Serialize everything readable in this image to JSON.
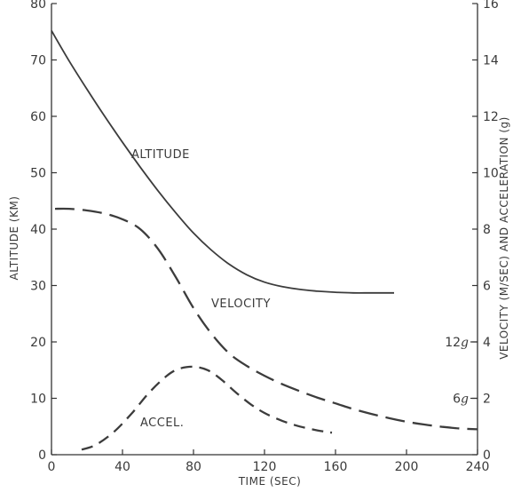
{
  "chart_data": {
    "type": "line",
    "xlabel": "TIME (SEC)",
    "ylabel": "ALTITUDE (KM)",
    "y2label": "VELOCITY (M/SEC) AND ACCELERATION (g)",
    "xlim": [
      0,
      240
    ],
    "ylim": [
      0,
      80
    ],
    "y2lim": [
      0,
      16
    ],
    "x_ticks": [
      0,
      40,
      80,
      120,
      160,
      200,
      240
    ],
    "y_ticks": [
      0,
      10,
      20,
      30,
      40,
      50,
      60,
      70,
      80
    ],
    "y2_ticks": [
      0,
      2,
      4,
      6,
      8,
      10,
      12,
      14,
      16
    ],
    "accel_ticks": [
      {
        "value": 2,
        "label": "6"
      },
      {
        "value": 4,
        "label": "12"
      }
    ],
    "accel_unit": "g",
    "grid": false,
    "series": [
      {
        "name": "ALTITUDE",
        "axis": "left",
        "style": "solid",
        "x": [
          0,
          10,
          20,
          30,
          40,
          50,
          60,
          70,
          80,
          90,
          100,
          110,
          120,
          130,
          140,
          150,
          160,
          170,
          180,
          193
        ],
        "y": [
          75.2,
          69.8,
          64.8,
          60.0,
          55.4,
          51.0,
          46.8,
          42.9,
          39.3,
          36.3,
          33.8,
          31.9,
          30.6,
          29.8,
          29.3,
          29.0,
          28.8,
          28.7,
          28.7,
          28.7
        ]
      },
      {
        "name": "VELOCITY",
        "axis": "right",
        "style": "dashed",
        "x": [
          2,
          10,
          20,
          30,
          40,
          50,
          60,
          70,
          80,
          90,
          100,
          110,
          120,
          130,
          140,
          150,
          160,
          170,
          180,
          190,
          200,
          210,
          220,
          230,
          240
        ],
        "y": [
          8.72,
          8.72,
          8.66,
          8.55,
          8.35,
          8.0,
          7.3,
          6.3,
          5.2,
          4.3,
          3.6,
          3.15,
          2.8,
          2.5,
          2.25,
          2.02,
          1.82,
          1.62,
          1.45,
          1.3,
          1.17,
          1.07,
          0.99,
          0.93,
          0.9
        ]
      },
      {
        "name": "ACCEL.",
        "axis": "right",
        "style": "dashed",
        "x": [
          17,
          25,
          35,
          45,
          55,
          65,
          72,
          80,
          88,
          96,
          104,
          112,
          120,
          130,
          140,
          150,
          158
        ],
        "y": [
          0.18,
          0.35,
          0.8,
          1.45,
          2.2,
          2.8,
          3.05,
          3.12,
          3.0,
          2.65,
          2.2,
          1.8,
          1.48,
          1.2,
          1.0,
          0.86,
          0.78
        ]
      }
    ]
  }
}
